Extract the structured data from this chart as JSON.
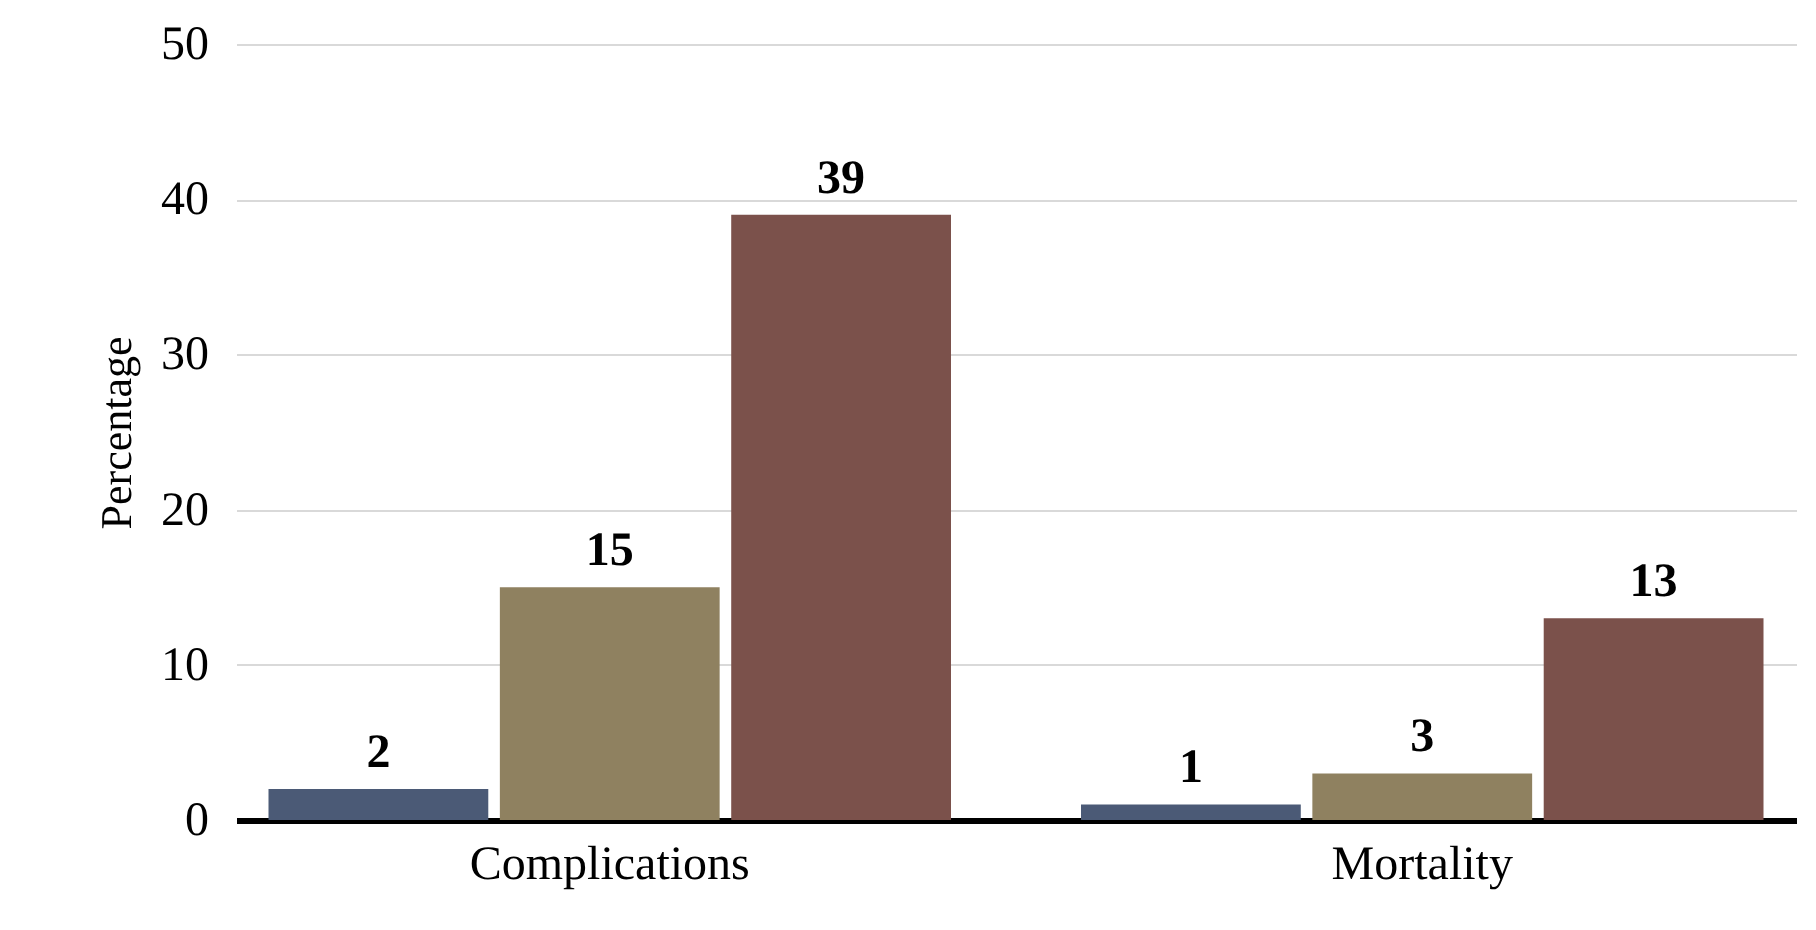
{
  "chart_data": {
    "type": "bar",
    "ylabel": "Percentage",
    "categories": [
      "Complications",
      "Mortality"
    ],
    "series": [
      {
        "color": "#4b5a76",
        "values": [
          2,
          1
        ]
      },
      {
        "color": "#8f8160",
        "values": [
          15,
          3
        ]
      },
      {
        "color": "#7b514b",
        "values": [
          39,
          13
        ]
      }
    ],
    "ylim": [
      0,
      50
    ],
    "yticks": [
      0,
      10,
      20,
      30,
      40,
      50
    ],
    "grid": "y",
    "data_labels": true
  }
}
